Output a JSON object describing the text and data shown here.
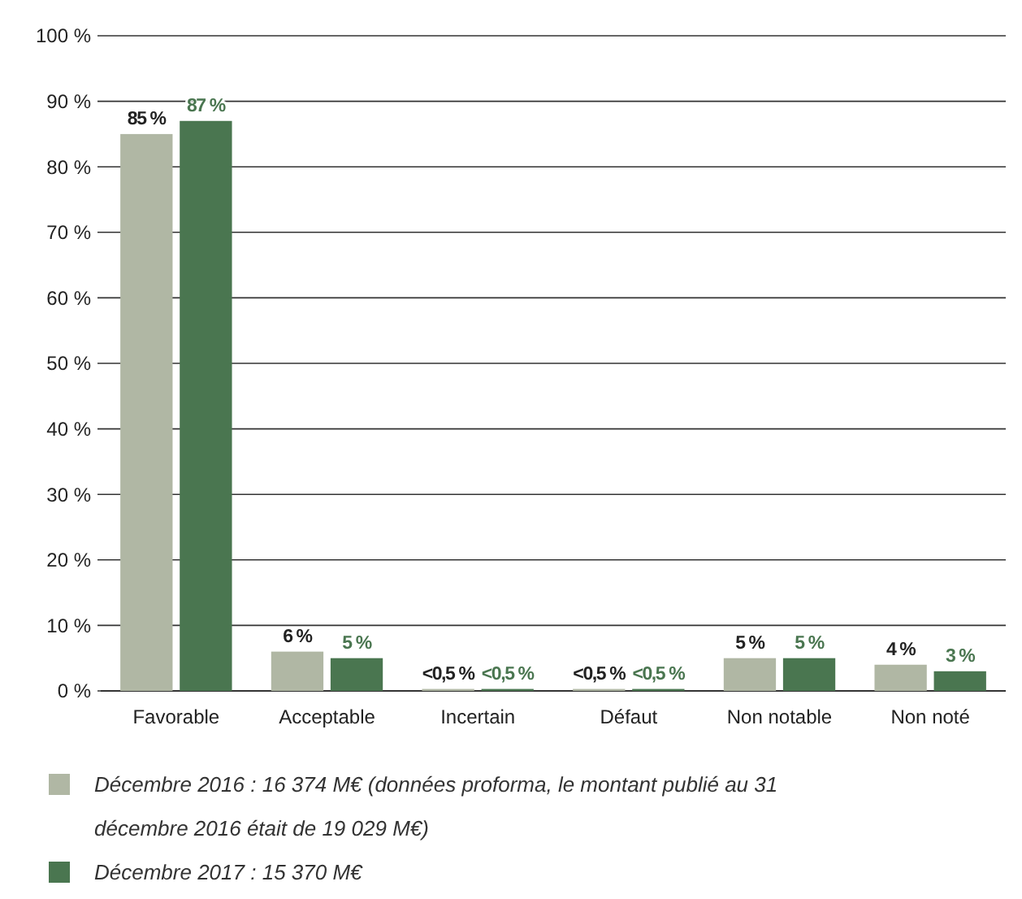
{
  "chart_data": {
    "type": "bar",
    "categories": [
      "Favorable",
      "Acceptable",
      "Incertain",
      "Défaut",
      "Non notable",
      "Non noté"
    ],
    "series": [
      {
        "name": "Décembre 2016 : 16 374 M€ (données proforma, le montant publié au 31 décembre 2016 était de 19 029 M€)",
        "color": "#b0b7a4",
        "values": [
          85,
          6,
          0.3,
          0.3,
          5,
          4
        ],
        "value_labels": [
          "85 %",
          "6 %",
          "<0,5 %",
          "<0,5 %",
          "5 %",
          "4 %"
        ]
      },
      {
        "name": "Décembre 2017 : 15 370 M€",
        "color": "#4a7650",
        "values": [
          87,
          5,
          0.3,
          0.3,
          5,
          3
        ],
        "value_labels": [
          "87 %",
          "5 %",
          "<0,5 %",
          "<0,5 %",
          "5 %",
          "3 %"
        ]
      }
    ],
    "ylim": [
      0,
      100
    ],
    "yticks": [
      {
        "value": 0,
        "label": "0 %"
      },
      {
        "value": 10,
        "label": "10 %"
      },
      {
        "value": 20,
        "label": "20 %"
      },
      {
        "value": 30,
        "label": "30 %"
      },
      {
        "value": 40,
        "label": "40 %"
      },
      {
        "value": 50,
        "label": "50 %"
      },
      {
        "value": 60,
        "label": "60 %"
      },
      {
        "value": 70,
        "label": "70 %"
      },
      {
        "value": 80,
        "label": "80 %"
      },
      {
        "value": 90,
        "label": "90 %"
      },
      {
        "value": 100,
        "label": "100 %"
      }
    ],
    "grid": "y",
    "legend": "bottom"
  }
}
